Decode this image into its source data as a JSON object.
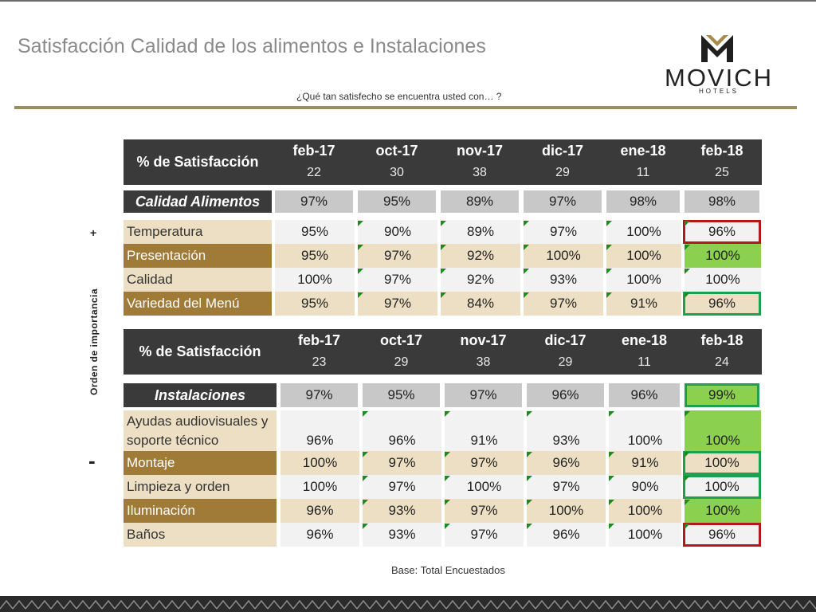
{
  "title": "Satisfacción Calidad de los alimentos e Instalaciones",
  "subtitle": "¿Qué tan satisfecho se encuentra usted con… ?",
  "logo": {
    "word": "MOVICH",
    "sub": "HOTELS"
  },
  "side": {
    "plus": "+",
    "minus": "-",
    "label": "Orden de importancia"
  },
  "colors": {
    "dark": "#3a3a3a",
    "gray": "#c8c8c8",
    "tan": "#eddfc3",
    "brown": "#a07a37",
    "light": "#f2f2f2",
    "green": "#8bd04f",
    "border_green": "#1fa050",
    "border_red": "#b21a1a",
    "marker": "#1f8a1f"
  },
  "tables": [
    {
      "header_label": "% de Satisfacción",
      "months": [
        "feb-17",
        "oct-17",
        "nov-17",
        "dic-17",
        "ene-18",
        "feb-18"
      ],
      "bases": [
        "22",
        "30",
        "38",
        "29",
        "11",
        "25"
      ],
      "summary": {
        "label": "Calidad Alimentos",
        "values": [
          "97%",
          "95%",
          "89%",
          "97%",
          "98%",
          "98%"
        ],
        "last_style": "gray"
      },
      "rows": [
        {
          "label": "Temperatura",
          "values": [
            "95%",
            "90%",
            "89%",
            "97%",
            "100%",
            "96%"
          ],
          "label_style": "tan",
          "row_style": "light",
          "last_style": "light",
          "last_border": "red"
        },
        {
          "label": "Presentación",
          "values": [
            "95%",
            "97%",
            "92%",
            "100%",
            "100%",
            "100%"
          ],
          "label_style": "brown",
          "row_style": "tan",
          "last_style": "green",
          "last_border": ""
        },
        {
          "label": "Calidad",
          "values": [
            "100%",
            "97%",
            "92%",
            "93%",
            "100%",
            "100%"
          ],
          "label_style": "tan",
          "row_style": "light",
          "last_style": "light",
          "last_border": ""
        },
        {
          "label": "Variedad del Menú",
          "values": [
            "95%",
            "97%",
            "84%",
            "97%",
            "91%",
            "96%"
          ],
          "label_style": "brown",
          "row_style": "tan",
          "last_style": "tan",
          "last_border": "green"
        }
      ]
    },
    {
      "header_label": "% de Satisfacción",
      "months": [
        "feb-17",
        "oct-17",
        "nov-17",
        "dic-17",
        "ene-18",
        "feb-18"
      ],
      "bases": [
        "23",
        "29",
        "38",
        "29",
        "11",
        "24"
      ],
      "summary": {
        "label": "Instalaciones",
        "values": [
          "97%",
          "95%",
          "97%",
          "96%",
          "96%",
          "99%"
        ],
        "last_style": "green",
        "last_border": "green"
      },
      "rows": [
        {
          "label": "Ayudas audiovisuales y soporte técnico",
          "values": [
            "96%",
            "96%",
            "91%",
            "93%",
            "100%",
            "100%"
          ],
          "label_style": "tan",
          "row_style": "light",
          "last_style": "green",
          "last_border": ""
        },
        {
          "label": "Montaje",
          "values": [
            "100%",
            "97%",
            "97%",
            "96%",
            "91%",
            "100%"
          ],
          "label_style": "brown",
          "row_style": "tan",
          "last_style": "tan",
          "last_border": "green"
        },
        {
          "label": "Limpieza y orden",
          "values": [
            "100%",
            "97%",
            "100%",
            "97%",
            "90%",
            "100%"
          ],
          "label_style": "tan",
          "row_style": "light",
          "last_style": "light",
          "last_border": "green"
        },
        {
          "label": "Iluminación",
          "values": [
            "96%",
            "93%",
            "97%",
            "100%",
            "100%",
            "100%"
          ],
          "label_style": "brown",
          "row_style": "tan",
          "last_style": "green",
          "last_border": ""
        },
        {
          "label": "Baños",
          "values": [
            "96%",
            "93%",
            "97%",
            "96%",
            "100%",
            "96%"
          ],
          "label_style": "tan",
          "row_style": "light",
          "last_style": "light",
          "last_border": "red"
        }
      ]
    }
  ],
  "base_note": "Base: Total Encuestados"
}
